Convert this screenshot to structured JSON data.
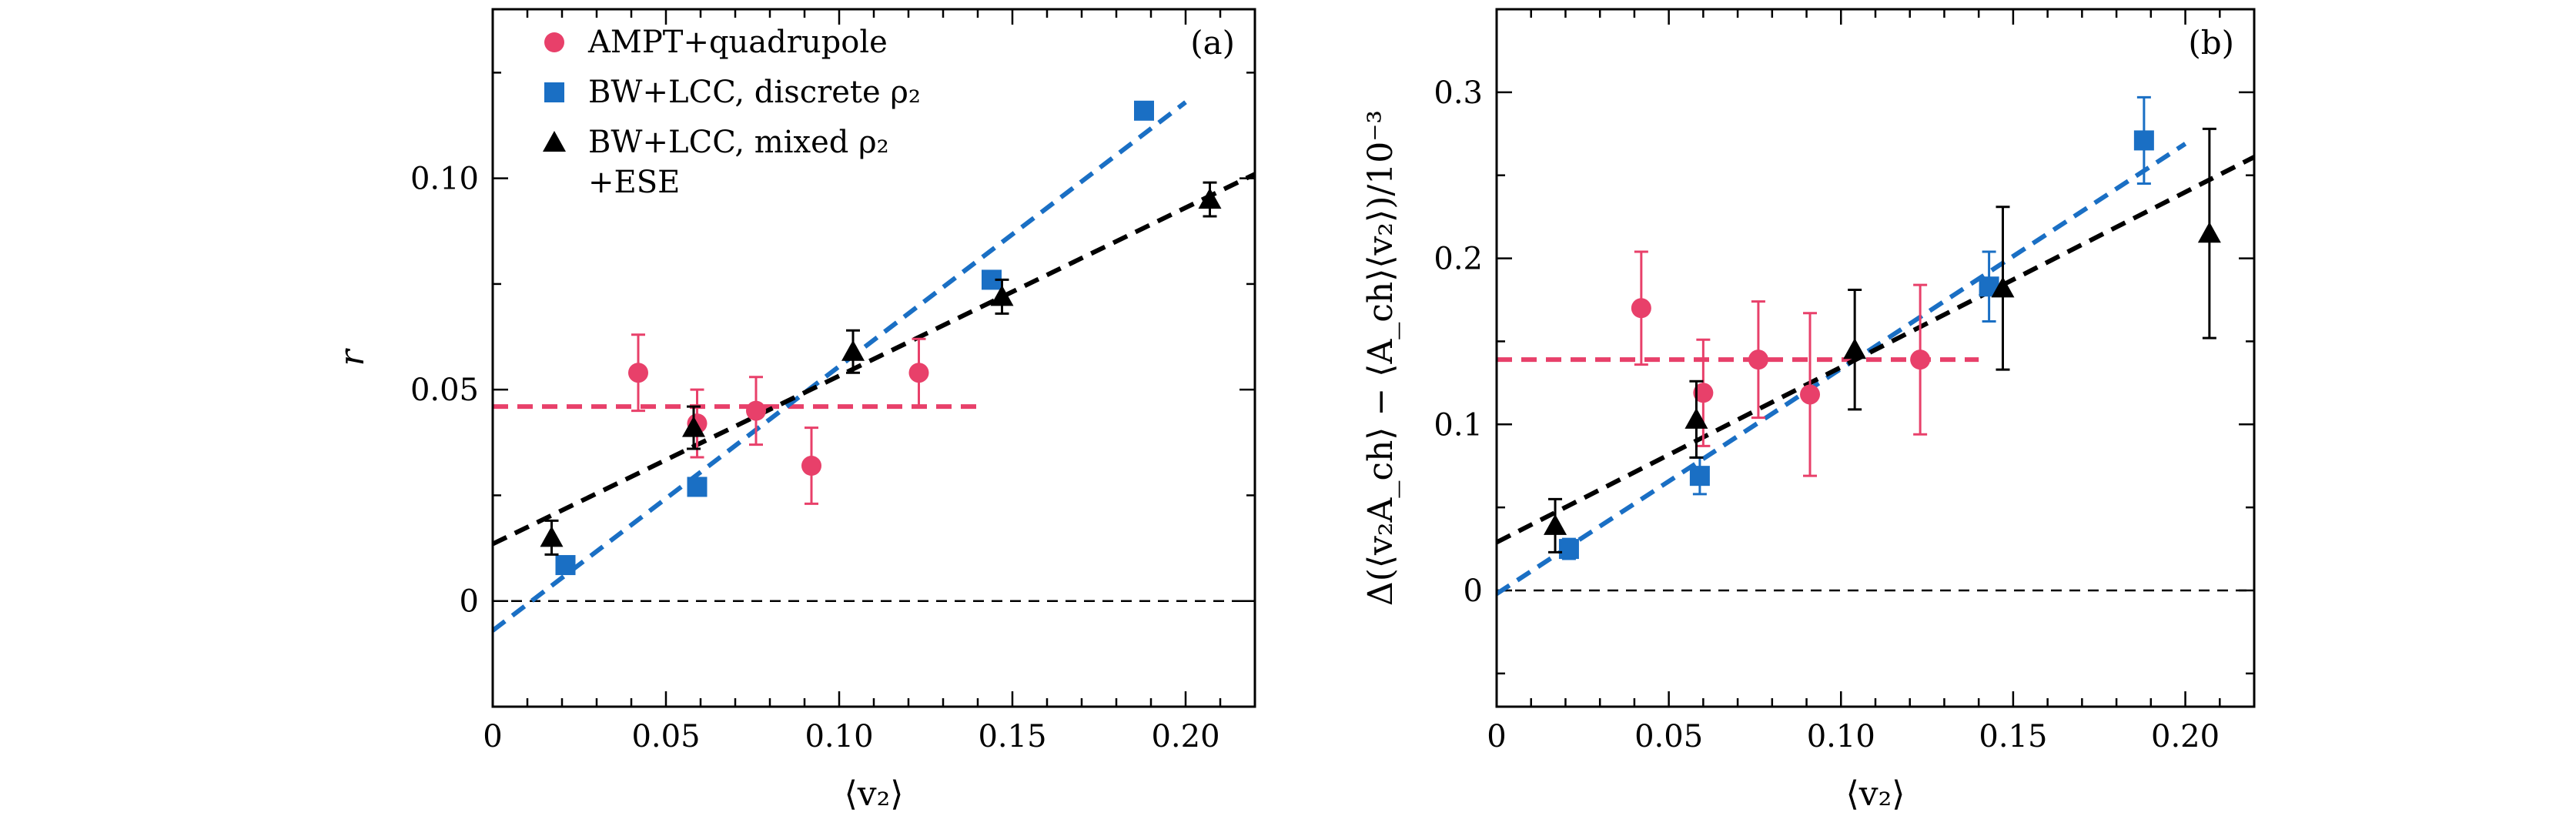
{
  "chart_data": [
    {
      "type": "scatter",
      "panel": "(a)",
      "xlabel": "⟨v₂⟩",
      "ylabel": "r",
      "xlim": [
        0,
        0.22
      ],
      "ylim": [
        -0.025,
        0.14
      ],
      "xticks": [
        0,
        0.05,
        0.1,
        0.15,
        0.2
      ],
      "xtick_labels": [
        "0",
        "0.05",
        "0.10",
        "0.15",
        "0.20"
      ],
      "yticks": [
        0,
        0.05,
        0.1
      ],
      "ytick_labels": [
        "0",
        "0.05",
        "0.10"
      ],
      "legend": {
        "placement": "top-left",
        "entries": [
          {
            "label": "AMPT+quadrupole",
            "marker": "circle",
            "color": "#e8406a"
          },
          {
            "label": "BW+LCC, discrete ρ₂",
            "marker": "square",
            "color": "#1a6fc4"
          },
          {
            "label": "BW+LCC, mixed ρ₂",
            "label2": "+ESE",
            "marker": "triangle",
            "color": "#000000"
          }
        ]
      },
      "series": [
        {
          "name": "AMPT+quadrupole",
          "marker": "circle",
          "color": "#e8406a",
          "points": [
            {
              "x": 0.042,
              "y": 0.054,
              "err": 0.009
            },
            {
              "x": 0.059,
              "y": 0.042,
              "err": 0.008
            },
            {
              "x": 0.076,
              "y": 0.045,
              "err": 0.008
            },
            {
              "x": 0.092,
              "y": 0.032,
              "err": 0.009
            },
            {
              "x": 0.123,
              "y": 0.054,
              "err": 0.008
            }
          ],
          "fit": {
            "x": [
              0,
              0.14
            ],
            "y": [
              0.046,
              0.046
            ],
            "color": "#e8406a"
          }
        },
        {
          "name": "BW+LCC, discrete ρ₂",
          "marker": "square",
          "color": "#1a6fc4",
          "points": [
            {
              "x": 0.021,
              "y": 0.0085,
              "err": 0
            },
            {
              "x": 0.059,
              "y": 0.027,
              "err": 0
            },
            {
              "x": 0.144,
              "y": 0.076,
              "err": 0
            },
            {
              "x": 0.188,
              "y": 0.116,
              "err": 0
            }
          ],
          "fit": {
            "x": [
              0,
              0.2
            ],
            "y": [
              -0.007,
              0.118
            ],
            "color": "#1a6fc4"
          }
        },
        {
          "name": "BW+LCC, mixed ρ₂ +ESE",
          "marker": "triangle",
          "color": "#000000",
          "points": [
            {
              "x": 0.017,
              "y": 0.015,
              "err": 0.004
            },
            {
              "x": 0.058,
              "y": 0.041,
              "err": 0.005
            },
            {
              "x": 0.104,
              "y": 0.059,
              "err": 0.005
            },
            {
              "x": 0.147,
              "y": 0.072,
              "err": 0.004
            },
            {
              "x": 0.207,
              "y": 0.095,
              "err": 0.004
            }
          ],
          "fit": {
            "x": [
              0,
              0.22
            ],
            "y": [
              0.0135,
              0.101
            ],
            "color": "#000000"
          }
        }
      ],
      "reference_line": {
        "y": 0
      }
    },
    {
      "type": "scatter",
      "panel": "(b)",
      "xlabel": "⟨v₂⟩",
      "ylabel": "Δ(⟨v₂A_ch⟩ − ⟨A_ch⟩⟨v₂⟩)/10⁻³",
      "xlim": [
        0,
        0.22
      ],
      "ylim": [
        -0.07,
        0.35
      ],
      "xticks": [
        0,
        0.05,
        0.1,
        0.15,
        0.2
      ],
      "xtick_labels": [
        "0",
        "0.05",
        "0.10",
        "0.15",
        "0.20"
      ],
      "yticks": [
        0,
        0.1,
        0.2,
        0.3
      ],
      "ytick_labels": [
        "0",
        "0.1",
        "0.2",
        "0.3"
      ],
      "series": [
        {
          "name": "AMPT+quadrupole",
          "marker": "circle",
          "color": "#e8406a",
          "points": [
            {
              "x": 0.042,
              "y": 0.17,
              "err": 0.034
            },
            {
              "x": 0.06,
              "y": 0.119,
              "err": 0.032
            },
            {
              "x": 0.076,
              "y": 0.139,
              "err": 0.035
            },
            {
              "x": 0.091,
              "y": 0.118,
              "err": 0.049
            },
            {
              "x": 0.123,
              "y": 0.139,
              "err": 0.045
            }
          ],
          "fit": {
            "x": [
              0,
              0.14
            ],
            "y": [
              0.139,
              0.139
            ],
            "color": "#e8406a"
          }
        },
        {
          "name": "BW+LCC, discrete ρ₂",
          "marker": "square",
          "color": "#1a6fc4",
          "points": [
            {
              "x": 0.021,
              "y": 0.025,
              "err": 0.006
            },
            {
              "x": 0.059,
              "y": 0.069,
              "err": 0.011
            },
            {
              "x": 0.143,
              "y": 0.183,
              "err": 0.021
            },
            {
              "x": 0.188,
              "y": 0.271,
              "err": 0.026
            }
          ],
          "fit": {
            "x": [
              0,
              0.2
            ],
            "y": [
              -0.002,
              0.269
            ],
            "color": "#1a6fc4"
          }
        },
        {
          "name": "BW+LCC, mixed ρ₂ +ESE",
          "marker": "triangle",
          "color": "#000000",
          "points": [
            {
              "x": 0.017,
              "y": 0.039,
              "err": 0.016
            },
            {
              "x": 0.058,
              "y": 0.103,
              "err": 0.023
            },
            {
              "x": 0.104,
              "y": 0.145,
              "err": 0.036
            },
            {
              "x": 0.147,
              "y": 0.182,
              "err": 0.049
            },
            {
              "x": 0.207,
              "y": 0.215,
              "err": 0.063
            }
          ],
          "fit": {
            "x": [
              0,
              0.22
            ],
            "y": [
              0.029,
              0.261
            ],
            "color": "#000000"
          }
        }
      ],
      "reference_line": {
        "y": 0
      }
    }
  ]
}
